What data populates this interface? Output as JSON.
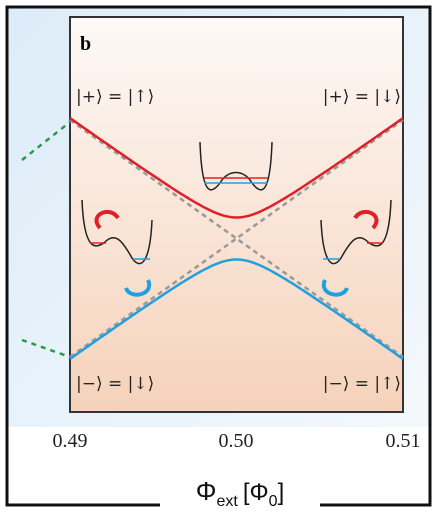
{
  "panel_label": "b",
  "states": {
    "top_left": "|+⟩ = |↑⟩",
    "top_right": "|+⟩ = |↓⟩",
    "bottom_left": "|−⟩ = |↓⟩",
    "bottom_right": "|−⟩ = |↑⟩"
  },
  "x_tick_labels": [
    "0.49",
    "0.50",
    "0.51"
  ],
  "axis_label": {
    "symbol": "Φ",
    "subscript": "ext",
    "unit_open": "[Φ",
    "unit_subscript": "0",
    "unit_close": "]"
  }
}
